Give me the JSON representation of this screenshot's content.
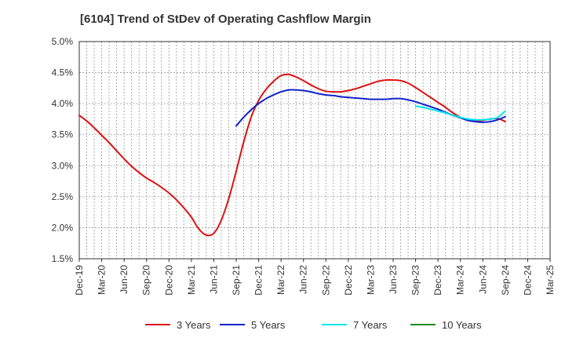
{
  "chart_data": {
    "type": "line",
    "title": "[6104]  Trend of StDev of Operating Cashflow Margin",
    "xlabel": "",
    "ylabel": "",
    "ylim": [
      1.5,
      5.0
    ],
    "yticks": [
      "1.5%",
      "2.0%",
      "2.5%",
      "3.0%",
      "3.5%",
      "4.0%",
      "4.5%",
      "5.0%"
    ],
    "xticks": [
      "Dec-19",
      "Mar-20",
      "Jun-20",
      "Sep-20",
      "Dec-20",
      "Mar-21",
      "Jun-21",
      "Sep-21",
      "Dec-21",
      "Mar-22",
      "Jun-22",
      "Sep-22",
      "Dec-22",
      "Mar-23",
      "Jun-23",
      "Sep-23",
      "Dec-23",
      "Mar-24",
      "Jun-24",
      "Sep-24",
      "Dec-24",
      "Mar-25"
    ],
    "grid": true,
    "legend_position": "bottom",
    "series": [
      {
        "name": "3 Years",
        "color": "#dd1111",
        "x": [
          "Dec-19",
          "Jan-20",
          "Feb-20",
          "Mar-20",
          "Apr-20",
          "May-20",
          "Jun-20",
          "Jul-20",
          "Aug-20",
          "Sep-20",
          "Oct-20",
          "Nov-20",
          "Dec-20",
          "Jan-21",
          "Feb-21",
          "Mar-21",
          "Apr-21",
          "May-21",
          "Jun-21",
          "Jul-21",
          "Aug-21",
          "Sep-21",
          "Oct-21",
          "Nov-21",
          "Dec-21",
          "Jan-22",
          "Feb-22",
          "Mar-22",
          "Apr-22",
          "May-22",
          "Jun-22",
          "Jul-22",
          "Aug-22",
          "Sep-22",
          "Oct-22",
          "Nov-22",
          "Dec-22",
          "Jan-23",
          "Feb-23",
          "Mar-23",
          "Apr-23",
          "May-23",
          "Jun-23",
          "Jul-23",
          "Aug-23",
          "Sep-23",
          "Oct-23",
          "Nov-23",
          "Dec-23",
          "Jan-24",
          "Feb-24",
          "Mar-24",
          "Apr-24",
          "May-24",
          "Jun-24",
          "Jul-24",
          "Aug-24",
          "Sep-24"
        ],
        "values": [
          3.81,
          3.72,
          3.61,
          3.49,
          3.37,
          3.24,
          3.11,
          2.99,
          2.89,
          2.8,
          2.73,
          2.65,
          2.56,
          2.45,
          2.32,
          2.17,
          1.98,
          1.88,
          1.91,
          2.12,
          2.47,
          2.91,
          3.38,
          3.78,
          4.05,
          4.23,
          4.36,
          4.45,
          4.47,
          4.43,
          4.37,
          4.3,
          4.24,
          4.2,
          4.19,
          4.19,
          4.21,
          4.24,
          4.28,
          4.32,
          4.36,
          4.38,
          4.38,
          4.37,
          4.33,
          4.26,
          4.18,
          4.1,
          4.02,
          3.94,
          3.85,
          3.78,
          3.73,
          3.72,
          3.73,
          3.75,
          3.76,
          3.71
        ]
      },
      {
        "name": "5 Years",
        "color": "#1122cc",
        "x": [
          "Sep-21",
          "Oct-21",
          "Nov-21",
          "Dec-21",
          "Jan-22",
          "Feb-22",
          "Mar-22",
          "Apr-22",
          "May-22",
          "Jun-22",
          "Jul-22",
          "Aug-22",
          "Sep-22",
          "Oct-22",
          "Nov-22",
          "Dec-22",
          "Jan-23",
          "Feb-23",
          "Mar-23",
          "Apr-23",
          "May-23",
          "Jun-23",
          "Jul-23",
          "Aug-23",
          "Sep-23",
          "Oct-23",
          "Nov-23",
          "Dec-23",
          "Jan-24",
          "Feb-24",
          "Mar-24",
          "Apr-24",
          "May-24",
          "Jun-24",
          "Jul-24",
          "Aug-24",
          "Sep-24"
        ],
        "values": [
          3.64,
          3.78,
          3.9,
          4.0,
          4.08,
          4.14,
          4.19,
          4.22,
          4.22,
          4.21,
          4.19,
          4.16,
          4.14,
          4.13,
          4.11,
          4.1,
          4.09,
          4.08,
          4.07,
          4.07,
          4.07,
          4.08,
          4.08,
          4.06,
          4.03,
          3.99,
          3.95,
          3.91,
          3.86,
          3.81,
          3.77,
          3.73,
          3.71,
          3.7,
          3.71,
          3.74,
          3.79
        ]
      },
      {
        "name": "7 Years",
        "color": "#00e5ee",
        "x": [
          "Sep-23",
          "Oct-23",
          "Nov-23",
          "Dec-23",
          "Jan-24",
          "Feb-24",
          "Mar-24",
          "Apr-24",
          "May-24",
          "Jun-24",
          "Jul-24",
          "Aug-24",
          "Sep-24"
        ],
        "values": [
          3.96,
          3.94,
          3.91,
          3.88,
          3.85,
          3.81,
          3.78,
          3.75,
          3.74,
          3.74,
          3.75,
          3.78,
          3.88
        ]
      },
      {
        "name": "10 Years",
        "color": "#228822",
        "x": [],
        "values": []
      }
    ]
  }
}
